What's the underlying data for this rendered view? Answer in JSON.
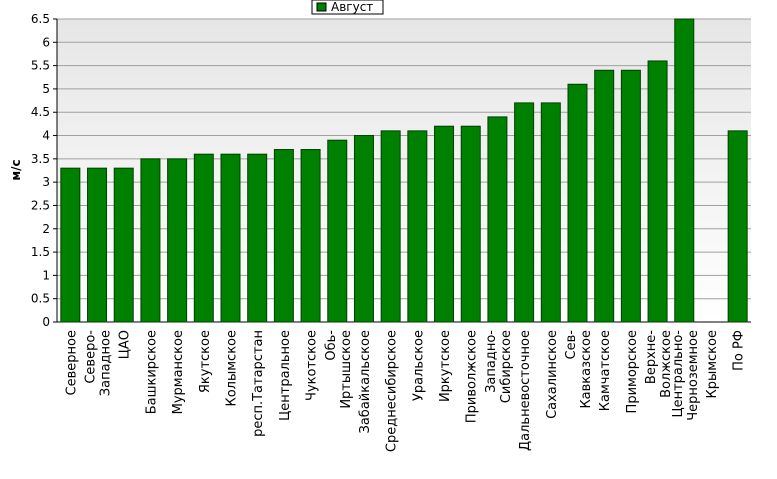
{
  "chart_data": {
    "type": "bar",
    "y_label": "м/с",
    "categories": [
      "Северное",
      "Северо-\nЗападное",
      "ЦАО",
      "Башкирское",
      "Мурманское",
      "Якутское",
      "Колымское",
      "респ.Татарстан",
      "Центральное",
      "Чукотское",
      "Обь-\nИртышское",
      "Забайкальское",
      "Среднесибирское",
      "Уральское",
      "Иркутское",
      "Приволжское",
      "Западно-\nСибирское",
      "Дальневосточное",
      "Сахалинское",
      "Сев-\nКавказское",
      "Камчатское",
      "Приморское",
      "Верхне-\nВолжское",
      "Центрально-\nЧерноземное",
      "Крымское",
      "По РФ"
    ],
    "series": [
      {
        "name": "Август",
        "color": "#008000",
        "values": [
          3.3,
          3.3,
          3.3,
          3.5,
          3.5,
          3.6,
          3.6,
          3.6,
          3.7,
          3.7,
          3.9,
          4.0,
          4.1,
          4.1,
          4.2,
          4.2,
          4.4,
          4.7,
          4.7,
          5.1,
          5.4,
          5.4,
          5.6,
          6.5,
          null,
          4.1
        ]
      }
    ],
    "ylim": [
      0,
      6.5
    ],
    "yticks": [
      0,
      0.5,
      1,
      1.5,
      2,
      2.5,
      3,
      3.5,
      4,
      4.5,
      5,
      5.5,
      6,
      6.5
    ],
    "grid": true,
    "legend": "top"
  }
}
